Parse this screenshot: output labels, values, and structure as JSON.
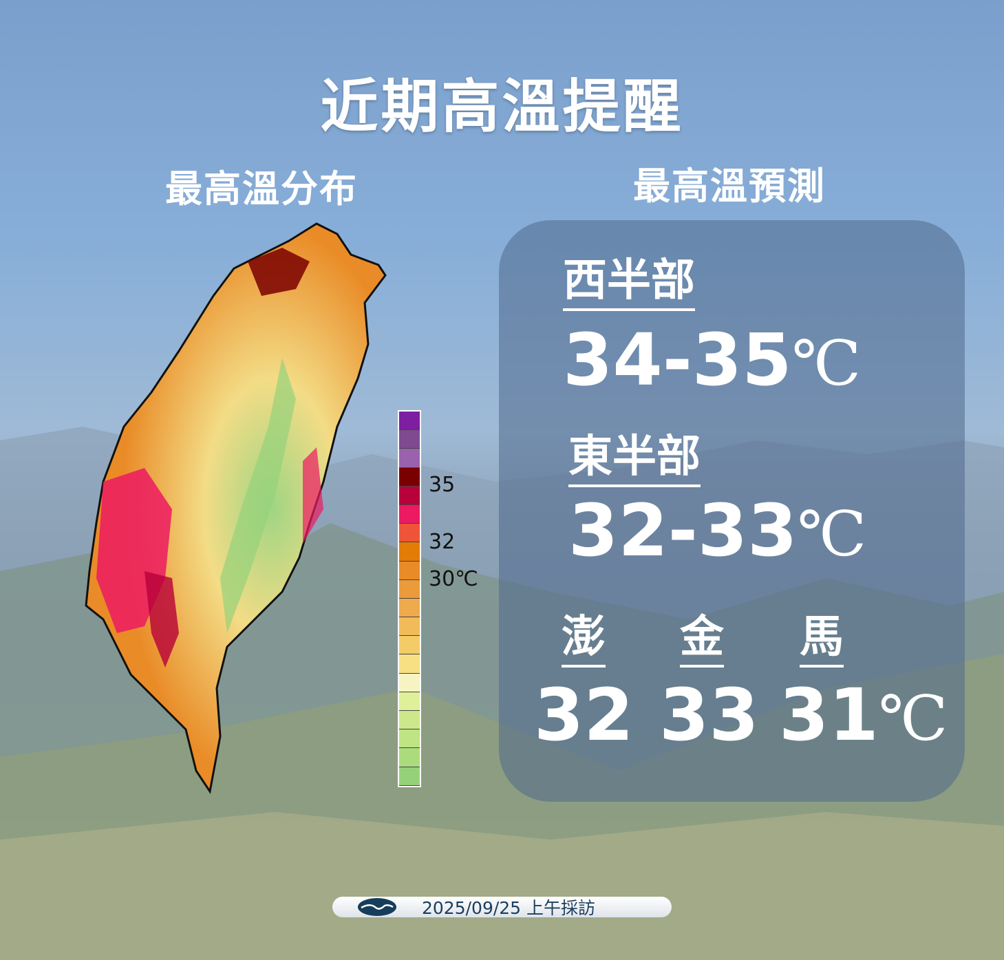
{
  "title": "近期高溫提醒",
  "map_section": {
    "heading": "最高溫分布",
    "legend": {
      "colors": [
        "#7d1fa0",
        "#7f4a90",
        "#9a62ae",
        "#7a0000",
        "#b8003a",
        "#ec1a62",
        "#ef5438",
        "#e37c06",
        "#e98b27",
        "#eb9b3a",
        "#eeaa4c",
        "#f1bb5a",
        "#f3cc68",
        "#f6e083",
        "#f7f4c4",
        "#dff09a",
        "#cde88a",
        "#bee484",
        "#abdc7c",
        "#96d17a"
      ],
      "labels": [
        "35",
        "32",
        "30℃"
      ]
    }
  },
  "forecast": {
    "heading": "最高溫預測",
    "west": {
      "label": "西半部",
      "value": "34-35",
      "unit": "℃"
    },
    "east": {
      "label": "東半部",
      "value": "32-33",
      "unit": "℃"
    },
    "islands": [
      {
        "label": "澎",
        "value": "32"
      },
      {
        "label": "金",
        "value": "33"
      },
      {
        "label": "馬",
        "value": "31"
      }
    ],
    "islands_unit": "℃"
  },
  "footer": {
    "text": "2025/09/25 上午採訪",
    "logo": "cwa-logo-icon"
  }
}
